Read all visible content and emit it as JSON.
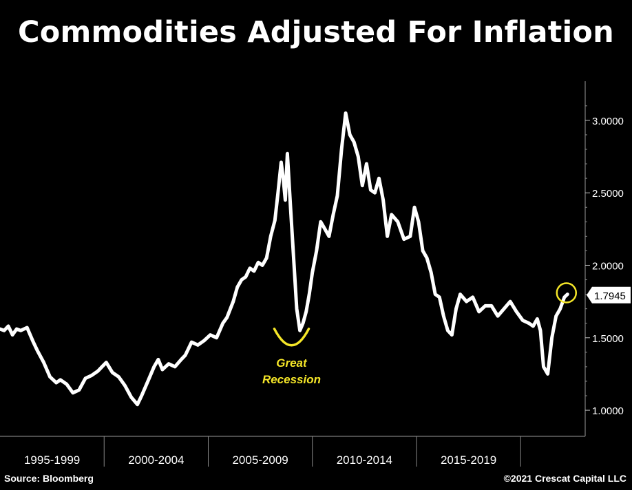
{
  "chart_data": {
    "type": "line",
    "title": "Commodities Adjusted For Inflation",
    "xlabel": "",
    "ylabel": "",
    "xlim": [
      1994.2,
      2022.3
    ],
    "ylim": [
      0.82,
      3.27
    ],
    "y_ticks": [
      1.0,
      1.5,
      2.0,
      2.5,
      3.0
    ],
    "y_tick_labels": [
      "1.0000",
      "1.5000",
      "2.0000",
      "2.5000",
      "3.0000"
    ],
    "x_periods": [
      {
        "label": "1995-1999",
        "start": 1994.2,
        "end": 1999.2
      },
      {
        "label": "2000-2004",
        "start": 1999.2,
        "end": 2004.2
      },
      {
        "label": "2005-2009",
        "start": 2004.2,
        "end": 2009.2
      },
      {
        "label": "2010-2014",
        "start": 2009.2,
        "end": 2014.2
      },
      {
        "label": "2015-2019",
        "start": 2014.2,
        "end": 2019.2
      }
    ],
    "last_value": 1.7945,
    "last_value_label": "1.7945",
    "line_color": "#ffffff",
    "annotation": {
      "text_lines": [
        "Great",
        "Recession"
      ],
      "color": "#f5e628",
      "at_x": 2008.2,
      "at_y": 1.5
    },
    "highlight_circle": {
      "x": 2021.4,
      "y": 1.81,
      "color": "#f5e628"
    },
    "series": [
      {
        "x": [
          1994.2,
          1994.4,
          1994.6,
          1994.8,
          1995.0,
          1995.2,
          1995.5,
          1995.8,
          1996.0,
          1996.3,
          1996.6,
          1996.9,
          1997.1,
          1997.4,
          1997.7,
          1998.0,
          1998.3,
          1998.6,
          1998.9,
          1999.1,
          1999.3,
          1999.6,
          1999.9,
          2000.2,
          2000.5,
          2000.8,
          2001.0,
          2001.3,
          2001.6,
          2001.8,
          2002.0,
          2002.3,
          2002.6,
          2002.9,
          2003.1,
          2003.4,
          2003.7,
          2004.0,
          2004.3,
          2004.6,
          2004.9,
          2005.1,
          2005.4,
          2005.6,
          2005.8,
          2006.0,
          2006.2,
          2006.4,
          2006.6,
          2006.8,
          2007.0,
          2007.2,
          2007.4,
          2007.55,
          2007.7,
          2007.8,
          2007.9,
          2008.0,
          2008.15,
          2008.3,
          2008.45,
          2008.6,
          2008.75,
          2008.9,
          2009.05,
          2009.2,
          2009.4,
          2009.6,
          2009.8,
          2010.0,
          2010.2,
          2010.4,
          2010.6,
          2010.8,
          2011.0,
          2011.2,
          2011.4,
          2011.6,
          2011.8,
          2012.0,
          2012.2,
          2012.4,
          2012.6,
          2012.8,
          2013.0,
          2013.3,
          2013.6,
          2013.9,
          2014.1,
          2014.3,
          2014.5,
          2014.7,
          2014.9,
          2015.1,
          2015.3,
          2015.5,
          2015.7,
          2015.9,
          2016.1,
          2016.3,
          2016.6,
          2016.9,
          2017.2,
          2017.5,
          2017.8,
          2018.1,
          2018.4,
          2018.7,
          2019.0,
          2019.3,
          2019.6,
          2019.8,
          2020.0,
          2020.15,
          2020.3,
          2020.5,
          2020.7,
          2020.9,
          2021.1,
          2021.3,
          2021.45
        ],
        "y": [
          1.56,
          1.55,
          1.58,
          1.52,
          1.56,
          1.55,
          1.57,
          1.47,
          1.41,
          1.33,
          1.23,
          1.19,
          1.21,
          1.18,
          1.12,
          1.14,
          1.22,
          1.24,
          1.27,
          1.3,
          1.33,
          1.26,
          1.23,
          1.17,
          1.09,
          1.04,
          1.1,
          1.2,
          1.3,
          1.35,
          1.28,
          1.32,
          1.3,
          1.35,
          1.38,
          1.47,
          1.45,
          1.48,
          1.52,
          1.5,
          1.6,
          1.64,
          1.75,
          1.85,
          1.9,
          1.92,
          1.98,
          1.96,
          2.02,
          2.0,
          2.05,
          2.2,
          2.31,
          2.5,
          2.71,
          2.6,
          2.45,
          2.77,
          2.4,
          2.05,
          1.7,
          1.55,
          1.6,
          1.68,
          1.8,
          1.95,
          2.1,
          2.3,
          2.25,
          2.2,
          2.35,
          2.48,
          2.8,
          3.05,
          2.9,
          2.85,
          2.75,
          2.55,
          2.7,
          2.52,
          2.5,
          2.6,
          2.45,
          2.2,
          2.35,
          2.3,
          2.18,
          2.2,
          2.4,
          2.3,
          2.1,
          2.05,
          1.95,
          1.8,
          1.78,
          1.65,
          1.55,
          1.52,
          1.7,
          1.8,
          1.75,
          1.78,
          1.68,
          1.72,
          1.72,
          1.65,
          1.7,
          1.75,
          1.68,
          1.62,
          1.6,
          1.58,
          1.63,
          1.55,
          1.3,
          1.25,
          1.5,
          1.65,
          1.7,
          1.78,
          1.8
        ]
      }
    ]
  },
  "footer": {
    "source": "Source: Bloomberg",
    "copyright": "©2021 Crescat Capital LLC"
  }
}
